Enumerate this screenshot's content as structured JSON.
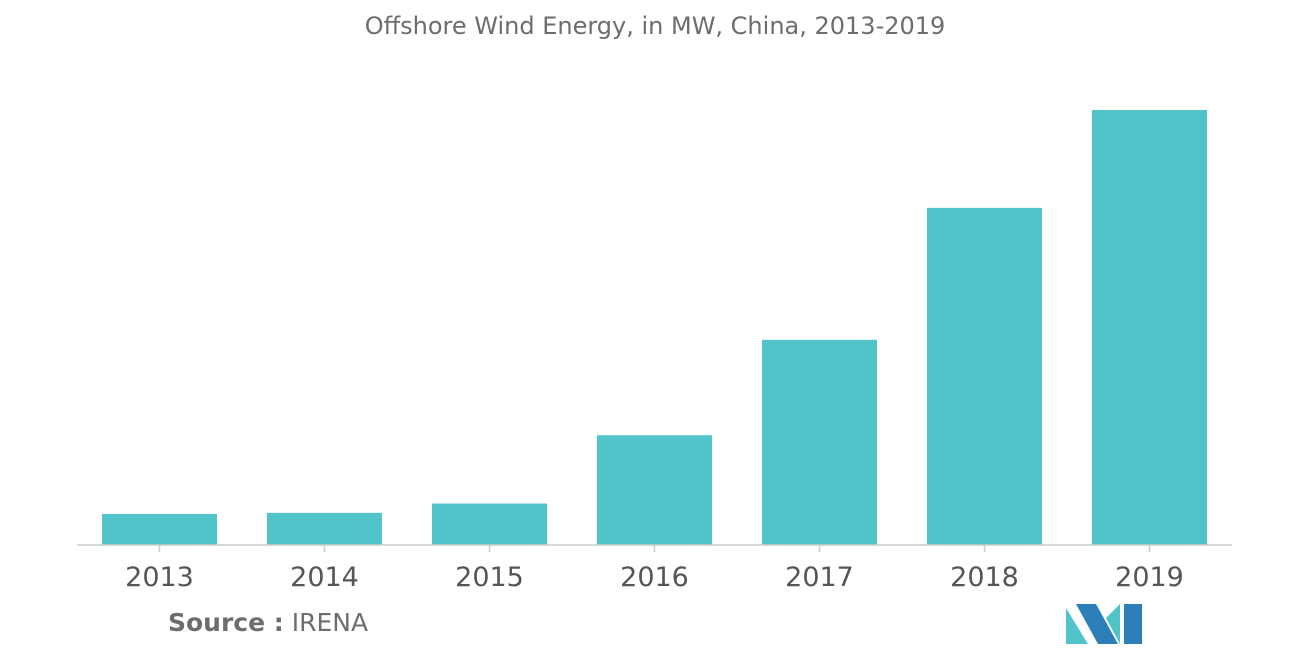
{
  "chart_data": {
    "type": "bar",
    "title": "Offshore Wind Energy, in MW, China, 2013-2019",
    "categories": [
      "2013",
      "2014",
      "2015",
      "2016",
      "2017",
      "2018",
      "2019"
    ],
    "values": [
      428,
      443,
      572,
      1514,
      2830,
      4650,
      6000
    ],
    "xlabel": "",
    "ylabel": "",
    "ylim": [
      0,
      6000
    ],
    "grid": false,
    "legend": "none",
    "bar_color": "#51c4ca"
  },
  "footer": {
    "source_label": "Source :",
    "source_value": "IRENA"
  },
  "colors": {
    "title": "#6d6d6d",
    "axis": "#cccccc",
    "logo_dark": "#2c7fb8",
    "logo_light": "#51c4ca"
  }
}
